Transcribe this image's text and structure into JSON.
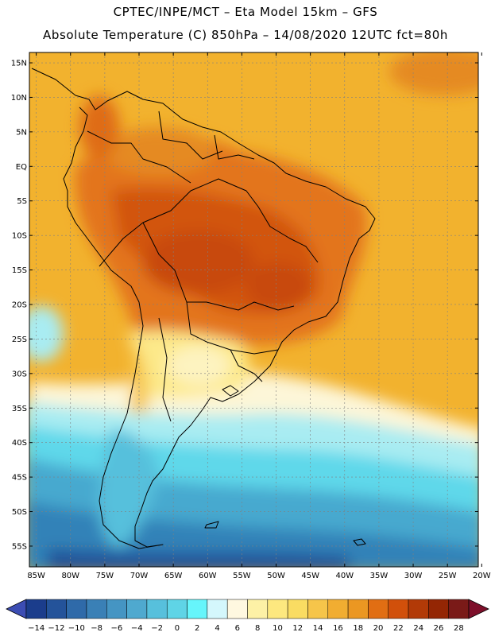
{
  "header": {
    "line1": "CPTEC/INPE/MCT –  Eta Model 15km – GFS",
    "line2": "Absolute Temperature (C) 850hPa – 14/08/2020 12UTC fct=80h"
  },
  "axes": {
    "lat_labels": [
      "15N",
      "10N",
      "5N",
      "EQ",
      "5S",
      "10S",
      "15S",
      "20S",
      "25S",
      "30S",
      "35S",
      "40S",
      "45S",
      "50S",
      "55S"
    ],
    "lat_values": [
      15,
      10,
      5,
      0,
      -5,
      -10,
      -15,
      -20,
      -25,
      -30,
      -35,
      -40,
      -45,
      -50,
      -55
    ],
    "lon_labels": [
      "85W",
      "80W",
      "75W",
      "70W",
      "65W",
      "60W",
      "55W",
      "50W",
      "45W",
      "40W",
      "35W",
      "30W",
      "25W",
      "20W"
    ],
    "lon_values": [
      -85,
      -80,
      -75,
      -70,
      -65,
      -60,
      -55,
      -50,
      -45,
      -40,
      -35,
      -30,
      -25,
      -20
    ],
    "lat_range": [
      -58,
      16.5
    ],
    "lon_range": [
      -86,
      -20.5
    ],
    "grid": true
  },
  "colorbar": {
    "labels": [
      "−14",
      "−12",
      "−10",
      "−8",
      "−6",
      "−4",
      "−2",
      "0",
      "2",
      "4",
      "6",
      "8",
      "10",
      "12",
      "14",
      "16",
      "18",
      "20",
      "22",
      "24",
      "26",
      "28"
    ],
    "colors": [
      "#1b3d8c",
      "#24539a",
      "#2f6aa9",
      "#3a80b6",
      "#4595c3",
      "#4fa9cf",
      "#57c0dc",
      "#5fd4e6",
      "#66f5fb",
      "#d4f7fc",
      "#fff8e0",
      "#fdf1a6",
      "#fde87f",
      "#fadc62",
      "#f6c54a",
      "#f1ad31",
      "#eb9722",
      "#e16e13",
      "#d1500b",
      "#b23a07",
      "#942604",
      "#7a1a18"
    ],
    "low_color": "#3c4db3",
    "high_color": "#7d0f2a"
  }
}
